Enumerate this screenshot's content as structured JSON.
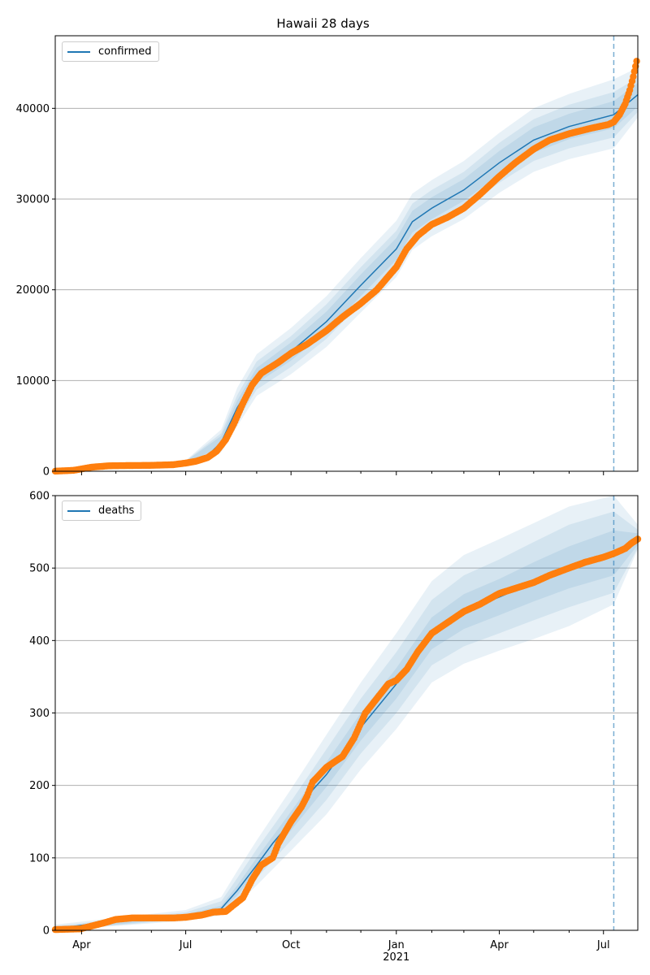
{
  "title": "Hawaii 28 days",
  "chart_data": [
    {
      "type": "line",
      "panel": "top",
      "series_name": "confirmed",
      "legend_position": "upper-left",
      "xlim": [
        "2020-03-09",
        "2021-07-31"
      ],
      "ylim": [
        0,
        48000
      ],
      "yticks": [
        0,
        10000,
        20000,
        30000,
        40000
      ],
      "ytick_labels": [
        "0",
        "10000",
        "20000",
        "30000",
        "40000"
      ],
      "grid_y": true,
      "forecast_start": "2021-07-10",
      "model_line": [
        [
          "2020-03-09",
          10
        ],
        [
          "2020-04-01",
          200
        ],
        [
          "2020-05-01",
          600
        ],
        [
          "2020-06-01",
          700
        ],
        [
          "2020-07-01",
          1000
        ],
        [
          "2020-07-20",
          1700
        ],
        [
          "2020-08-01",
          3200
        ],
        [
          "2020-08-15",
          7000
        ],
        [
          "2020-09-01",
          10500
        ],
        [
          "2020-10-01",
          13200
        ],
        [
          "2020-11-01",
          16500
        ],
        [
          "2020-12-01",
          20500
        ],
        [
          "2021-01-01",
          24500
        ],
        [
          "2021-01-15",
          27500
        ],
        [
          "2021-02-01",
          29000
        ],
        [
          "2021-03-01",
          31000
        ],
        [
          "2021-04-01",
          34000
        ],
        [
          "2021-05-01",
          36500
        ],
        [
          "2021-06-01",
          38000
        ],
        [
          "2021-07-10",
          39300
        ],
        [
          "2021-07-31",
          41500
        ]
      ],
      "band_inner": [
        [
          "2020-03-09",
          0,
          30
        ],
        [
          "2020-07-01",
          900,
          1100
        ],
        [
          "2020-08-01",
          2700,
          3900
        ],
        [
          "2020-08-15",
          6200,
          7800
        ],
        [
          "2020-09-01",
          9700,
          11400
        ],
        [
          "2020-10-01",
          12200,
          14200
        ],
        [
          "2020-11-01",
          15400,
          17600
        ],
        [
          "2020-12-01",
          19300,
          21700
        ],
        [
          "2021-01-01",
          23300,
          25700
        ],
        [
          "2021-01-15",
          26300,
          28700
        ],
        [
          "2021-02-01",
          27800,
          30200
        ],
        [
          "2021-03-01",
          29800,
          32200
        ],
        [
          "2021-04-01",
          32700,
          35300
        ],
        [
          "2021-05-01",
          35100,
          37900
        ],
        [
          "2021-06-01",
          36600,
          39400
        ],
        [
          "2021-07-10",
          37800,
          40800
        ],
        [
          "2021-07-31",
          40200,
          42800
        ]
      ],
      "band_mid": [
        [
          "2020-03-09",
          0,
          60
        ],
        [
          "2020-07-01",
          850,
          1150
        ],
        [
          "2020-08-01",
          2400,
          4200
        ],
        [
          "2020-08-15",
          5600,
          8400
        ],
        [
          "2020-09-01",
          9000,
          12100
        ],
        [
          "2020-10-01",
          11500,
          14900
        ],
        [
          "2020-11-01",
          14600,
          18400
        ],
        [
          "2020-12-01",
          18500,
          22500
        ],
        [
          "2021-01-01",
          22500,
          26500
        ],
        [
          "2021-01-15",
          25500,
          29500
        ],
        [
          "2021-02-01",
          27000,
          31000
        ],
        [
          "2021-03-01",
          29000,
          33000
        ],
        [
          "2021-04-01",
          31800,
          36200
        ],
        [
          "2021-05-01",
          34200,
          38800
        ],
        [
          "2021-06-01",
          35600,
          40400
        ],
        [
          "2021-07-10",
          36800,
          41800
        ],
        [
          "2021-07-31",
          39600,
          43400
        ]
      ],
      "band_outer": [
        [
          "2020-03-09",
          0,
          100
        ],
        [
          "2020-07-01",
          800,
          1200
        ],
        [
          "2020-08-01",
          2100,
          4600
        ],
        [
          "2020-08-15",
          5000,
          9200
        ],
        [
          "2020-09-01",
          8300,
          12900
        ],
        [
          "2020-10-01",
          10700,
          15800
        ],
        [
          "2020-11-01",
          13700,
          19300
        ],
        [
          "2020-12-01",
          17500,
          23500
        ],
        [
          "2021-01-01",
          21400,
          27600
        ],
        [
          "2021-01-15",
          24400,
          30600
        ],
        [
          "2021-02-01",
          25900,
          32100
        ],
        [
          "2021-03-01",
          27800,
          34200
        ],
        [
          "2021-04-01",
          30700,
          37300
        ],
        [
          "2021-05-01",
          33000,
          40000
        ],
        [
          "2021-06-01",
          34400,
          41600
        ],
        [
          "2021-07-10",
          35600,
          43200
        ],
        [
          "2021-07-31",
          39000,
          44500
        ]
      ],
      "observed": [
        [
          "2020-03-09",
          10
        ],
        [
          "2020-03-25",
          100
        ],
        [
          "2020-04-10",
          450
        ],
        [
          "2020-04-25",
          600
        ],
        [
          "2020-05-15",
          630
        ],
        [
          "2020-06-01",
          650
        ],
        [
          "2020-06-20",
          720
        ],
        [
          "2020-07-01",
          900
        ],
        [
          "2020-07-10",
          1100
        ],
        [
          "2020-07-20",
          1500
        ],
        [
          "2020-07-28",
          2200
        ],
        [
          "2020-08-05",
          3500
        ],
        [
          "2020-08-12",
          5200
        ],
        [
          "2020-08-20",
          7500
        ],
        [
          "2020-08-28",
          9500
        ],
        [
          "2020-09-05",
          10800
        ],
        [
          "2020-09-20",
          12000
        ],
        [
          "2020-10-01",
          13000
        ],
        [
          "2020-10-15",
          14000
        ],
        [
          "2020-11-01",
          15500
        ],
        [
          "2020-11-15",
          17000
        ],
        [
          "2020-12-01",
          18500
        ],
        [
          "2020-12-15",
          20000
        ],
        [
          "2021-01-01",
          22500
        ],
        [
          "2021-01-10",
          24500
        ],
        [
          "2021-01-20",
          26000
        ],
        [
          "2021-02-01",
          27200
        ],
        [
          "2021-02-15",
          28000
        ],
        [
          "2021-03-01",
          29000
        ],
        [
          "2021-03-15",
          30500
        ],
        [
          "2021-04-01",
          32500
        ],
        [
          "2021-04-15",
          34000
        ],
        [
          "2021-05-01",
          35500
        ],
        [
          "2021-05-15",
          36500
        ],
        [
          "2021-06-01",
          37200
        ],
        [
          "2021-06-20",
          37800
        ],
        [
          "2021-07-05",
          38200
        ],
        [
          "2021-07-10",
          38500
        ],
        [
          "2021-07-15",
          39300
        ],
        [
          "2021-07-20",
          40500
        ],
        [
          "2021-07-24",
          42000
        ],
        [
          "2021-07-27",
          43500
        ],
        [
          "2021-07-30",
          45200
        ]
      ]
    },
    {
      "type": "line",
      "panel": "bottom",
      "series_name": "deaths",
      "legend_position": "upper-left",
      "xlim": [
        "2020-03-09",
        "2021-07-31"
      ],
      "ylim": [
        0,
        600
      ],
      "yticks": [
        0,
        100,
        200,
        300,
        400,
        500,
        600
      ],
      "ytick_labels": [
        "0",
        "100",
        "200",
        "300",
        "400",
        "500",
        "600"
      ],
      "grid_y": true,
      "forecast_start": "2021-07-10",
      "xtick_major_labels": [
        "Apr",
        "Jul",
        "Oct",
        "Jan",
        "Apr",
        "Jul"
      ],
      "xtick_major_dates": [
        "2020-04-01",
        "2020-07-01",
        "2020-10-01",
        "2021-01-01",
        "2021-04-01",
        "2021-07-01"
      ],
      "xtick_year_label": "2021",
      "model_line": [
        [
          "2020-03-09",
          2
        ],
        [
          "2020-04-15",
          10
        ],
        [
          "2020-05-01",
          16
        ],
        [
          "2020-07-01",
          19
        ],
        [
          "2020-08-01",
          30
        ],
        [
          "2020-08-15",
          55
        ],
        [
          "2020-09-01",
          90
        ],
        [
          "2020-09-15",
          120
        ],
        [
          "2020-10-01",
          150
        ],
        [
          "2020-10-15",
          185
        ],
        [
          "2020-11-01",
          215
        ],
        [
          "2020-12-01",
          280
        ],
        [
          "2021-01-01",
          340
        ],
        [
          "2021-01-15",
          375
        ],
        [
          "2021-02-01",
          410
        ],
        [
          "2021-03-01",
          440
        ],
        [
          "2021-04-01",
          460
        ],
        [
          "2021-05-01",
          480
        ],
        [
          "2021-06-01",
          500
        ],
        [
          "2021-07-10",
          520
        ],
        [
          "2021-07-31",
          540
        ]
      ],
      "band_inner": [
        [
          "2020-03-09",
          0,
          4
        ],
        [
          "2020-07-01",
          17,
          22
        ],
        [
          "2020-08-01",
          27,
          34
        ],
        [
          "2020-08-15",
          48,
          62
        ],
        [
          "2020-09-01",
          82,
          100
        ],
        [
          "2020-10-01",
          138,
          164
        ],
        [
          "2020-11-01",
          198,
          232
        ],
        [
          "2020-12-01",
          262,
          300
        ],
        [
          "2021-01-01",
          320,
          362
        ],
        [
          "2021-02-01",
          388,
          432
        ],
        [
          "2021-03-01",
          416,
          464
        ],
        [
          "2021-04-01",
          435,
          485
        ],
        [
          "2021-05-01",
          454,
          508
        ],
        [
          "2021-06-01",
          472,
          530
        ],
        [
          "2021-07-10",
          490,
          552
        ],
        [
          "2021-07-31",
          532,
          548
        ]
      ],
      "band_mid": [
        [
          "2020-03-09",
          0,
          6
        ],
        [
          "2020-07-01",
          15,
          25
        ],
        [
          "2020-08-01",
          24,
          40
        ],
        [
          "2020-08-15",
          42,
          72
        ],
        [
          "2020-09-01",
          72,
          112
        ],
        [
          "2020-10-01",
          124,
          178
        ],
        [
          "2020-11-01",
          180,
          250
        ],
        [
          "2020-12-01",
          244,
          320
        ],
        [
          "2021-01-01",
          300,
          384
        ],
        [
          "2021-02-01",
          366,
          456
        ],
        [
          "2021-03-01",
          392,
          490
        ],
        [
          "2021-04-01",
          410,
          512
        ],
        [
          "2021-05-01",
          428,
          536
        ],
        [
          "2021-06-01",
          446,
          560
        ],
        [
          "2021-07-10",
          466,
          578
        ],
        [
          "2021-07-31",
          528,
          553
        ]
      ],
      "band_outer": [
        [
          "2020-03-09",
          0,
          8
        ],
        [
          "2020-07-01",
          13,
          28
        ],
        [
          "2020-08-01",
          21,
          46
        ],
        [
          "2020-08-15",
          36,
          82
        ],
        [
          "2020-09-01",
          62,
          124
        ],
        [
          "2020-10-01",
          110,
          195
        ],
        [
          "2020-11-01",
          160,
          270
        ],
        [
          "2020-12-01",
          222,
          342
        ],
        [
          "2021-01-01",
          278,
          410
        ],
        [
          "2021-02-01",
          342,
          482
        ],
        [
          "2021-03-01",
          368,
          518
        ],
        [
          "2021-04-01",
          386,
          540
        ],
        [
          "2021-05-01",
          402,
          562
        ],
        [
          "2021-06-01",
          420,
          585
        ],
        [
          "2021-07-10",
          450,
          600
        ],
        [
          "2021-07-31",
          526,
          560
        ]
      ],
      "observed": [
        [
          "2020-03-09",
          1
        ],
        [
          "2020-03-31",
          2
        ],
        [
          "2020-04-10",
          6
        ],
        [
          "2020-04-20",
          10
        ],
        [
          "2020-05-01",
          15
        ],
        [
          "2020-05-15",
          17
        ],
        [
          "2020-06-01",
          17
        ],
        [
          "2020-06-20",
          17
        ],
        [
          "2020-07-01",
          18
        ],
        [
          "2020-07-15",
          21
        ],
        [
          "2020-07-25",
          25
        ],
        [
          "2020-08-05",
          26
        ],
        [
          "2020-08-12",
          35
        ],
        [
          "2020-08-20",
          45
        ],
        [
          "2020-08-28",
          70
        ],
        [
          "2020-09-05",
          90
        ],
        [
          "2020-09-15",
          100
        ],
        [
          "2020-09-20",
          120
        ],
        [
          "2020-10-01",
          150
        ],
        [
          "2020-10-10",
          170
        ],
        [
          "2020-10-15",
          185
        ],
        [
          "2020-10-20",
          205
        ],
        [
          "2020-11-01",
          225
        ],
        [
          "2020-11-15",
          240
        ],
        [
          "2020-11-25",
          265
        ],
        [
          "2020-12-05",
          300
        ],
        [
          "2020-12-15",
          320
        ],
        [
          "2020-12-25",
          340
        ],
        [
          "2021-01-01",
          345
        ],
        [
          "2021-01-10",
          360
        ],
        [
          "2021-01-20",
          385
        ],
        [
          "2021-02-01",
          410
        ],
        [
          "2021-02-15",
          425
        ],
        [
          "2021-03-01",
          440
        ],
        [
          "2021-03-15",
          450
        ],
        [
          "2021-04-01",
          465
        ],
        [
          "2021-04-15",
          472
        ],
        [
          "2021-05-01",
          480
        ],
        [
          "2021-05-15",
          490
        ],
        [
          "2021-06-01",
          500
        ],
        [
          "2021-06-15",
          508
        ],
        [
          "2021-07-01",
          515
        ],
        [
          "2021-07-10",
          520
        ],
        [
          "2021-07-20",
          527
        ],
        [
          "2021-07-26",
          535
        ],
        [
          "2021-07-31",
          540
        ]
      ]
    }
  ]
}
